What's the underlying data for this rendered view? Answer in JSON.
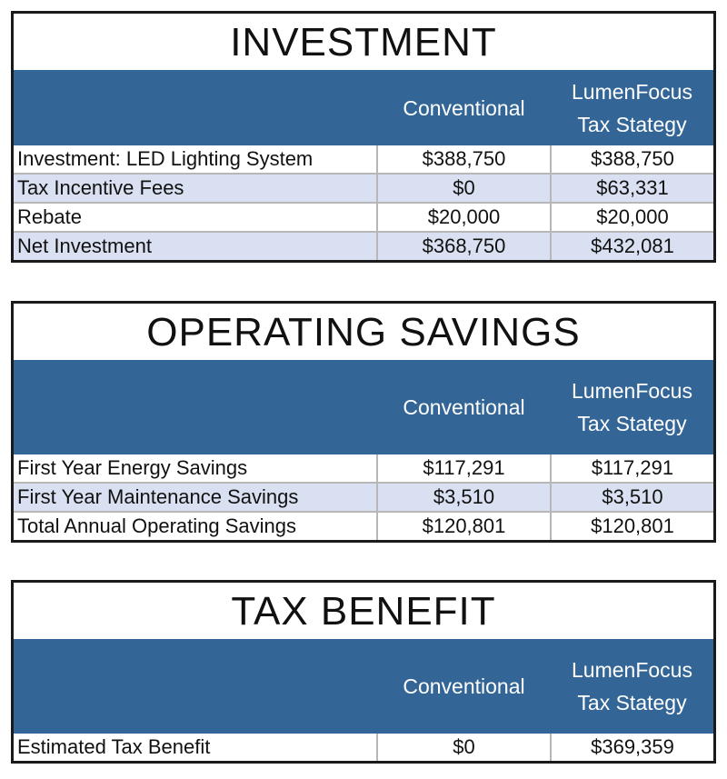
{
  "column_headers": {
    "conventional": "Conventional",
    "lumen_line1": "LumenFocus",
    "lumen_line2": "Tax Stategy"
  },
  "colors": {
    "header_band": "#336696",
    "shaded_row": "#d8e0f1",
    "grid_line": "#b7b7b7"
  },
  "investment": {
    "title": "INVESTMENT",
    "rows": [
      {
        "label": "Investment: LED Lighting System",
        "conventional": "$388,750",
        "lumenfocus": "$388,750"
      },
      {
        "label": "Tax Incentive Fees",
        "conventional": "$0",
        "lumenfocus": "$63,331"
      },
      {
        "label": "Rebate",
        "conventional": "$20,000",
        "lumenfocus": "$20,000"
      },
      {
        "label": "Net Investment",
        "conventional": "$368,750",
        "lumenfocus": "$432,081"
      }
    ]
  },
  "operating_savings": {
    "title": "OPERATING SAVINGS",
    "rows": [
      {
        "label": "First Year Energy Savings",
        "conventional": "$117,291",
        "lumenfocus": "$117,291"
      },
      {
        "label": "First Year Maintenance Savings",
        "conventional": "$3,510",
        "lumenfocus": "$3,510"
      },
      {
        "label": "Total Annual Operating Savings",
        "conventional": "$120,801",
        "lumenfocus": "$120,801"
      }
    ]
  },
  "tax_benefit": {
    "title": "TAX BENEFIT",
    "rows": [
      {
        "label": "Estimated Tax Benefit",
        "conventional": "$0",
        "lumenfocus": "$369,359"
      }
    ]
  }
}
